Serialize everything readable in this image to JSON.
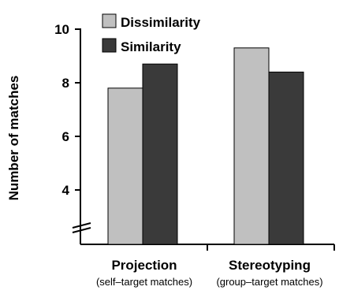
{
  "chart_data": {
    "type": "bar",
    "ylabel": "Number of matches",
    "categories": [
      "Projection",
      "Stereotyping"
    ],
    "category_sublabels": [
      "(self–target matches)",
      "(group–target matches)"
    ],
    "series": [
      {
        "name": "Dissimilarity",
        "values": [
          7.8,
          9.3
        ],
        "color": "#c0c0c0"
      },
      {
        "name": "Similarity",
        "values": [
          8.7,
          8.4
        ],
        "color": "#3a3a3a"
      }
    ],
    "ylim": [
      2,
      10
    ],
    "yticks": [
      4,
      6,
      8,
      10
    ],
    "axis_break": true,
    "grid": false,
    "legend_position": "top-left"
  }
}
